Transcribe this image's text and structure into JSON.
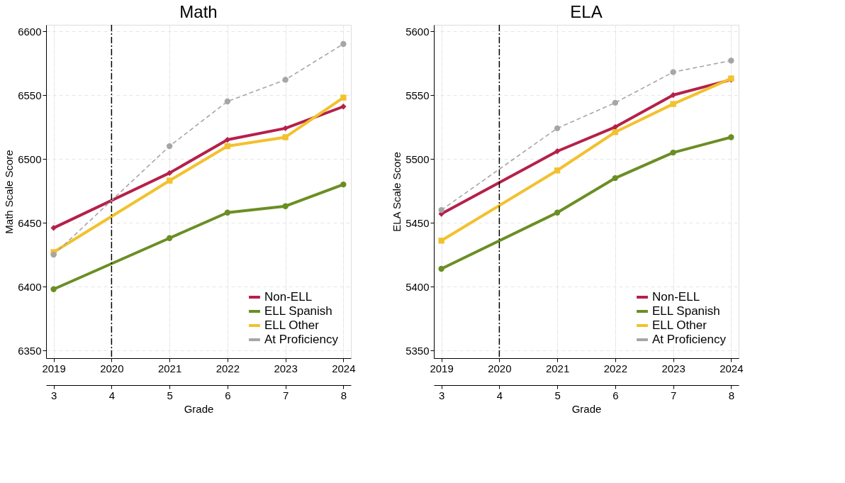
{
  "chart_data": [
    {
      "type": "line",
      "title": "Math",
      "xlabel": "Grade",
      "ylabel": "Math Scale Score",
      "xlim": [
        2.87,
        8.13
      ],
      "xticks": [
        3,
        4,
        5,
        6,
        7,
        8
      ],
      "x2lim": [
        2018.87,
        2024.13
      ],
      "x2ticks": [
        2019,
        2020,
        2021,
        2022,
        2023,
        2024
      ],
      "ylim": [
        6344,
        6605
      ],
      "yticks": [
        6350,
        6400,
        6450,
        6500,
        6550,
        6600
      ],
      "grid": true,
      "legend": "bottom right",
      "ref_lines": [
        {
          "axis": "x2",
          "value": 2020,
          "line_style": "dashed",
          "color": "#000000"
        }
      ],
      "series": [
        {
          "name": "Non-ELL",
          "color": "#b5204a",
          "marker": "diamond",
          "line_style": "solid",
          "x": [
            3,
            5,
            6,
            7,
            8
          ],
          "values": [
            6446,
            6489,
            6515,
            6524,
            6541
          ]
        },
        {
          "name": "ELL Spanish",
          "color": "#6b8e23",
          "marker": "circle",
          "line_style": "solid",
          "x": [
            3,
            5,
            6,
            7,
            8
          ],
          "values": [
            6398,
            6438,
            6458,
            6463,
            6480
          ]
        },
        {
          "name": "ELL Other",
          "color": "#f2c12e",
          "marker": "square",
          "line_style": "solid",
          "x": [
            3,
            5,
            6,
            7,
            8
          ],
          "values": [
            6427,
            6483,
            6510,
            6517,
            6548
          ]
        },
        {
          "name": "At Proficiency",
          "color": "#a6a6a6",
          "marker": "circle",
          "line_style": "dashed",
          "x": [
            3,
            5,
            6,
            7,
            8
          ],
          "values": [
            6425,
            6510,
            6545,
            6562,
            6590
          ]
        }
      ]
    },
    {
      "type": "line",
      "title": "ELA",
      "xlabel": "Grade",
      "ylabel": "ELA Scale Score",
      "xlim": [
        2.87,
        8.13
      ],
      "xticks": [
        3,
        4,
        5,
        6,
        7,
        8
      ],
      "x2lim": [
        2018.87,
        2024.13
      ],
      "x2ticks": [
        2019,
        2020,
        2021,
        2022,
        2023,
        2024
      ],
      "ylim": [
        5344,
        5605
      ],
      "yticks": [
        5350,
        5400,
        5450,
        5500,
        5550,
        5600
      ],
      "grid": true,
      "legend": "bottom right",
      "ref_lines": [
        {
          "axis": "x2",
          "value": 2020,
          "line_style": "dashed",
          "color": "#000000"
        }
      ],
      "series": [
        {
          "name": "Non-ELL",
          "color": "#b5204a",
          "marker": "diamond",
          "line_style": "solid",
          "x": [
            3,
            5,
            6,
            7,
            8
          ],
          "values": [
            5457,
            5506,
            5525,
            5550,
            5562
          ]
        },
        {
          "name": "ELL Spanish",
          "color": "#6b8e23",
          "marker": "circle",
          "line_style": "solid",
          "x": [
            3,
            5,
            6,
            7,
            8
          ],
          "values": [
            5414,
            5458,
            5485,
            5505,
            5517
          ]
        },
        {
          "name": "ELL Other",
          "color": "#f2c12e",
          "marker": "square",
          "line_style": "solid",
          "x": [
            3,
            5,
            6,
            7,
            8
          ],
          "values": [
            5436,
            5491,
            5521,
            5543,
            5563
          ]
        },
        {
          "name": "At Proficiency",
          "color": "#a6a6a6",
          "marker": "circle",
          "line_style": "dashed",
          "x": [
            3,
            5,
            6,
            7,
            8
          ],
          "values": [
            5460,
            5524,
            5544,
            5568,
            5577
          ]
        }
      ]
    }
  ]
}
